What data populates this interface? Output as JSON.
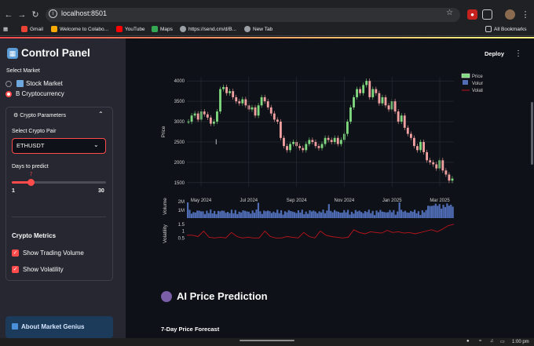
{
  "browser": {
    "url": "localhost:8501",
    "bookmarks": [
      {
        "label": "Gmail",
        "color": "#ea4335"
      },
      {
        "label": "Welcome to Colabo...",
        "color": "#f9ab00"
      },
      {
        "label": "YouTube",
        "color": "#ff0000"
      },
      {
        "label": "Maps",
        "color": "#34a853"
      },
      {
        "label": "https://send.cm/d/B...",
        "color": "#9aa0a6"
      },
      {
        "label": "New Tab",
        "color": "#9aa0a6"
      }
    ],
    "all_bookmarks": "All Bookmarks"
  },
  "sidebar": {
    "title": "Control Panel",
    "select_market_label": "Select Market",
    "markets": [
      {
        "label": "Stock Market",
        "selected": false
      },
      {
        "label": "B Cryptocurrency",
        "selected": true
      }
    ],
    "crypto_params": {
      "header": "Crypto Parameters",
      "pair_label": "Select Crypto Pair",
      "pair_value": "ETHUSDT",
      "days_label": "Days to predict",
      "days_value": "7",
      "days_min": "1",
      "days_max": "30"
    },
    "metrics": {
      "title": "Crypto Metrics",
      "options": [
        {
          "label": "Show Trading Volume",
          "checked": true
        },
        {
          "label": "Show Volatility",
          "checked": true
        }
      ]
    },
    "about": "About Market Genius"
  },
  "main": {
    "deploy": "Deploy",
    "prediction_title": "AI Price Prediction",
    "forecast_title": "7-Day Price Forecast"
  },
  "taskbar": {
    "time": "1:00 pm"
  },
  "chart_data": {
    "type": "line",
    "title": "",
    "price": {
      "ylabel": "Price",
      "yticks": [
        "4000",
        "3500",
        "3000",
        "2500",
        "2000",
        "1500"
      ],
      "ylim": [
        1400,
        4100
      ],
      "series_name": "Price",
      "values": [
        3000,
        3150,
        3200,
        3050,
        3250,
        3180,
        3100,
        2950,
        3000,
        3250,
        3800,
        3850,
        3700,
        3750,
        3600,
        3500,
        3450,
        3550,
        3400,
        3300,
        3350,
        3150,
        3400,
        3600,
        3500,
        3350,
        3200,
        3050,
        3000,
        2600,
        2400,
        2300,
        2450,
        2500,
        2400,
        2350,
        2300,
        2450,
        2550,
        2500,
        2400,
        2350,
        2450,
        2600,
        2550,
        2500,
        2600,
        2450,
        2550,
        2700,
        3000,
        3350,
        3600,
        3800,
        3700,
        3900,
        4000,
        3600,
        3800,
        3700,
        3450,
        3600,
        3400,
        3300,
        3500,
        3250,
        3000,
        3150,
        2850,
        2700,
        2600,
        2400,
        2300,
        2500,
        2250,
        2050,
        2000,
        1950,
        1850,
        2050,
        1800,
        1700,
        1550,
        1600
      ]
    },
    "volume": {
      "ylabel": "Volume",
      "yticks": [
        "2M",
        "1M"
      ],
      "series_name": "Volume",
      "color": "#4f6cb5"
    },
    "volatility": {
      "ylabel": "Volatility",
      "yticks": [
        "1.5",
        "1",
        "0.5"
      ],
      "series_name": "Volatility",
      "color": "#c0141c",
      "values": [
        0.7,
        0.7,
        0.6,
        1.0,
        0.55,
        0.5,
        0.55,
        0.5,
        0.9,
        0.6,
        0.5,
        0.55,
        0.5,
        0.5,
        1.0,
        0.6,
        0.5,
        0.5,
        0.6,
        0.55,
        0.5,
        0.9,
        0.6,
        0.5,
        1.0,
        0.7,
        0.6,
        0.55,
        0.5,
        0.55,
        1.1,
        0.9,
        0.8,
        0.95,
        0.9,
        0.85,
        1.05,
        0.9,
        0.95,
        0.85,
        0.9,
        0.8,
        0.9,
        1.0,
        1.1,
        0.95,
        1.15,
        1.4,
        1.5
      ]
    },
    "xticks": [
      "May 2024",
      "Jul 2024",
      "Sep 2024",
      "Nov 2024",
      "Jan 2025",
      "Mar 2025"
    ],
    "legend": [
      "Price",
      "Volume",
      "Volatility"
    ],
    "legend_position": "top-right",
    "up_color": "#7fd97f",
    "down_color": "#f0a0a0"
  }
}
